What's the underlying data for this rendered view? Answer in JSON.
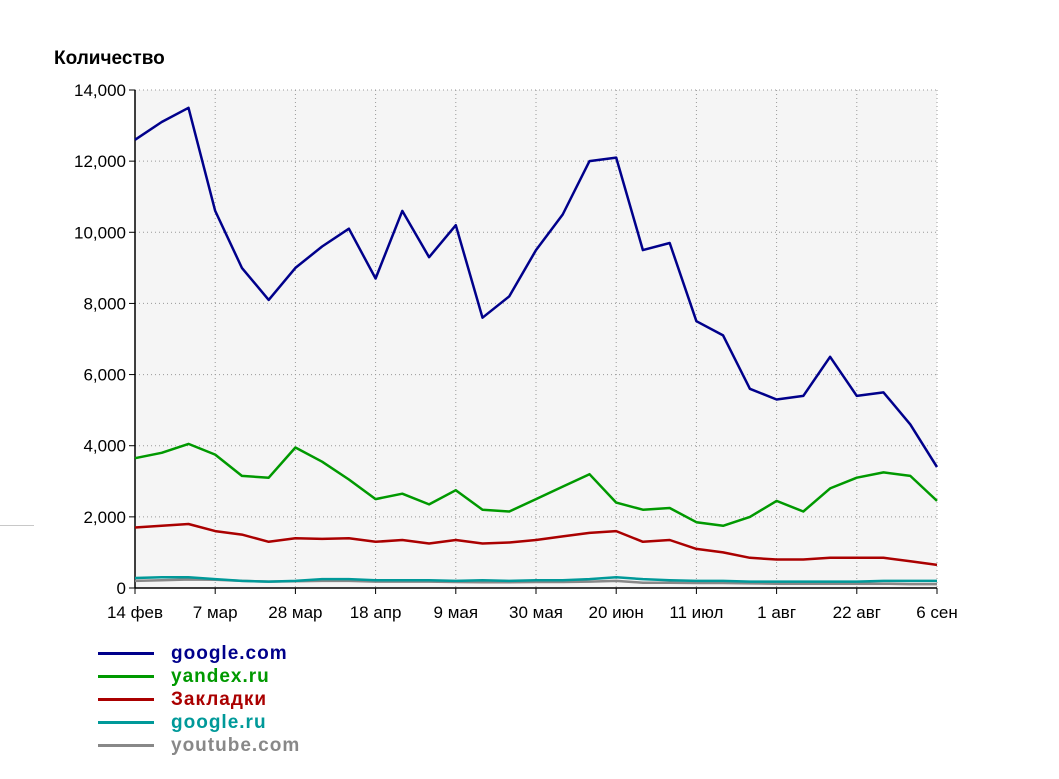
{
  "chart_data": {
    "type": "line",
    "title": "",
    "ylabel": "Количество",
    "xlabel": "",
    "ylim": [
      0,
      14000
    ],
    "y_ticks": [
      "0",
      "2,000",
      "4,000",
      "6,000",
      "8,000",
      "10,000",
      "12,000",
      "14,000"
    ],
    "x_ticks": [
      "14 фев",
      "7 мар",
      "28 мар",
      "18 апр",
      "9 мая",
      "30 мая",
      "20 июн",
      "11 июл",
      "1 авг",
      "22 авг",
      "6 сен"
    ],
    "grid": true,
    "legend_position": "bottom-left",
    "series": [
      {
        "name": "google.com",
        "color": "#00008b",
        "values": [
          12600,
          13100,
          13500,
          10600,
          9000,
          8100,
          9000,
          9600,
          10100,
          8700,
          10600,
          9300,
          10200,
          7600,
          8200,
          9500,
          10500,
          12000,
          12100,
          9500,
          9700,
          7500,
          7100,
          5600,
          5300,
          5400,
          6500,
          5400,
          5500,
          4600,
          3400
        ]
      },
      {
        "name": "yandex.ru",
        "color": "#009900",
        "values": [
          3650,
          3800,
          4050,
          3750,
          3150,
          3100,
          3950,
          3550,
          3050,
          2500,
          2650,
          2350,
          2750,
          2200,
          2150,
          2500,
          2850,
          3200,
          2400,
          2200,
          2250,
          1850,
          1750,
          2000,
          2450,
          2150,
          2800,
          3100,
          3250,
          3150,
          2450
        ]
      },
      {
        "name": "Закладки",
        "color": "#aa0000",
        "values": [
          1700,
          1750,
          1800,
          1600,
          1500,
          1300,
          1400,
          1380,
          1400,
          1300,
          1350,
          1250,
          1350,
          1250,
          1280,
          1350,
          1450,
          1550,
          1600,
          1300,
          1350,
          1100,
          1000,
          850,
          800,
          800,
          850,
          850,
          850,
          750,
          650
        ]
      },
      {
        "name": "google.ru",
        "color": "#009999",
        "values": [
          280,
          300,
          300,
          250,
          200,
          180,
          200,
          250,
          250,
          220,
          220,
          220,
          200,
          220,
          200,
          220,
          220,
          250,
          300,
          250,
          220,
          200,
          200,
          180,
          180,
          180,
          180,
          180,
          200,
          200,
          200
        ]
      },
      {
        "name": "youtube.com",
        "color": "#888888",
        "values": [
          200,
          220,
          240,
          230,
          200,
          180,
          190,
          200,
          200,
          180,
          180,
          180,
          170,
          160,
          160,
          170,
          170,
          180,
          200,
          150,
          150,
          140,
          140,
          130,
          120,
          120,
          120,
          120,
          120,
          110,
          110
        ]
      }
    ]
  }
}
